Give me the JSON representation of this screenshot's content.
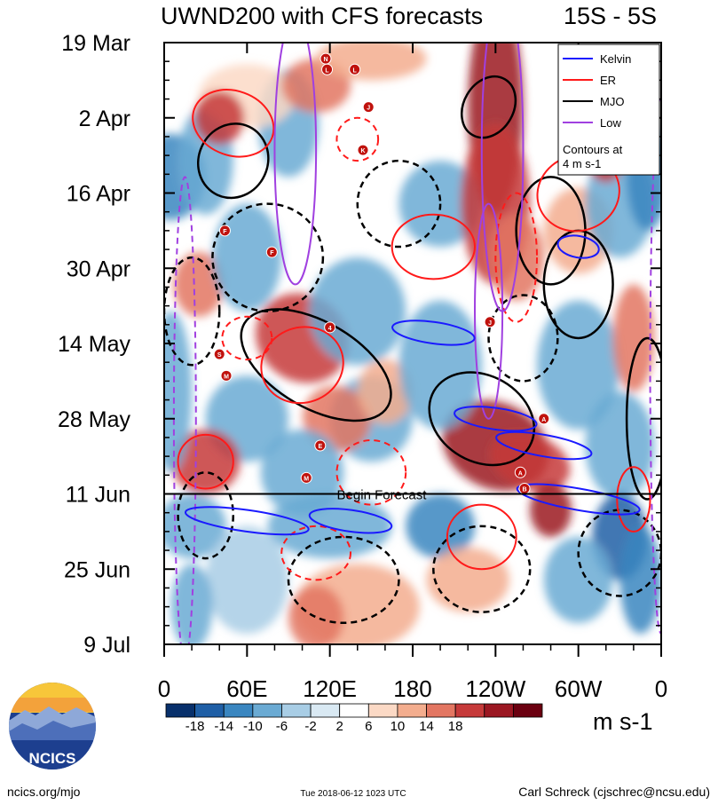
{
  "chart_data": {
    "type": "heatmap",
    "title": "UWND200 with CFS forecasts",
    "region_label": "15S - 5S",
    "y_tick_labels": [
      "19 Mar",
      "2 Apr",
      "16 Apr",
      "30 Apr",
      "14 May",
      "28 May",
      "11 Jun",
      "25 Jun",
      "9 Jul"
    ],
    "x_tick_labels": [
      "0",
      "60E",
      "120E",
      "180",
      "120W",
      "60W",
      "0"
    ],
    "x_tick_lon": [
      0,
      60,
      120,
      180,
      240,
      300,
      360
    ],
    "xlim": [
      0,
      360
    ],
    "ylim_days": [
      0,
      112
    ],
    "forecast_start_label": "Begin Forecast",
    "forecast_start_day": 84,
    "colorbar": {
      "levels": [
        -18,
        -14,
        -10,
        -6,
        -2,
        2,
        6,
        10,
        14,
        18
      ],
      "tick_labels": [
        "-18",
        "-14",
        "-10",
        "-6",
        "-2",
        "2",
        "6",
        "10",
        "14",
        "18"
      ],
      "colors": [
        "#08306b",
        "#1f5fa6",
        "#3a86c0",
        "#6aaad3",
        "#a8cde5",
        "#d9e9f3",
        "#ffffff",
        "#fbd9c5",
        "#f3ad8e",
        "#e37662",
        "#c63a3a",
        "#9b1722",
        "#6b0010"
      ],
      "unit": "m s-1"
    },
    "legend": {
      "placement": "top-right",
      "entries": [
        {
          "label": "Kelvin",
          "color": "#1a1aff"
        },
        {
          "label": "ER",
          "color": "#ff1a1a"
        },
        {
          "label": "MJO",
          "color": "#000000"
        },
        {
          "label": "Low",
          "color": "#a040e0"
        }
      ],
      "note_line1": "Contours at",
      "note_line2": "4 m s-1"
    },
    "storm_markers": [
      {
        "letter": "N",
        "lon": 117,
        "day": 3
      },
      {
        "letter": "L",
        "lon": 118,
        "day": 5
      },
      {
        "letter": "L",
        "lon": 138,
        "day": 5
      },
      {
        "letter": "J",
        "lon": 148,
        "day": 12
      },
      {
        "letter": "K",
        "lon": 144,
        "day": 20
      },
      {
        "letter": "F",
        "lon": 44,
        "day": 35
      },
      {
        "letter": "F",
        "lon": 78,
        "day": 39
      },
      {
        "letter": "J",
        "lon": 236,
        "day": 52
      },
      {
        "letter": "4",
        "lon": 120,
        "day": 53
      },
      {
        "letter": "S",
        "lon": 40,
        "day": 58
      },
      {
        "letter": "M",
        "lon": 45,
        "day": 62
      },
      {
        "letter": "A",
        "lon": 275,
        "day": 70
      },
      {
        "letter": "E",
        "lon": 113,
        "day": 75
      },
      {
        "letter": "A",
        "lon": 258,
        "day": 80
      },
      {
        "letter": "M",
        "lon": 103,
        "day": 81
      },
      {
        "letter": "B",
        "lon": 261,
        "day": 83
      }
    ]
  },
  "logo": {
    "text": "NCICS"
  },
  "footer": {
    "left": "ncics.org/mjo",
    "center": "Tue 2018-06-12 1023 UTC",
    "right": "Carl Schreck (cjschrec@ncsu.edu)"
  }
}
